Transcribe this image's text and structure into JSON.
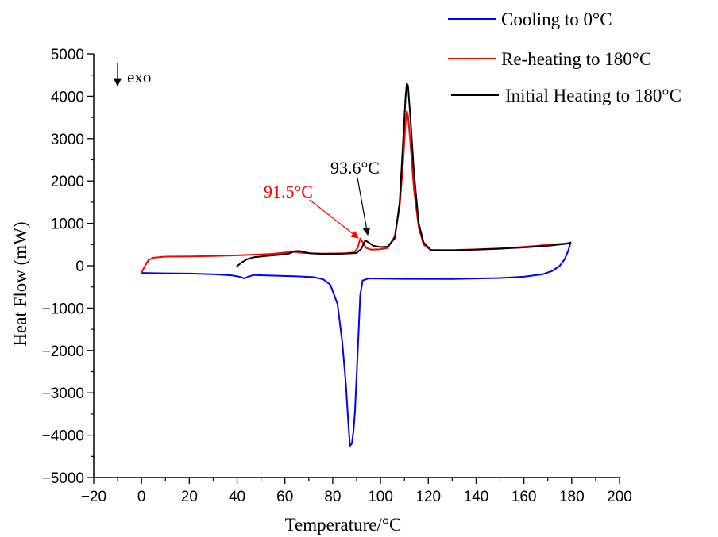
{
  "chart_data": {
    "type": "line",
    "title": "",
    "xlabel": "Temperature/°C",
    "ylabel": "Heat Flow (mW)",
    "xlim": [
      -20,
      200
    ],
    "ylim": [
      -5000,
      5000
    ],
    "x_ticks": [
      -20,
      0,
      20,
      40,
      60,
      80,
      100,
      120,
      140,
      160,
      180,
      200
    ],
    "y_ticks": [
      -5000,
      -4000,
      -3000,
      -2000,
      -1000,
      0,
      1000,
      2000,
      3000,
      4000,
      5000
    ],
    "x_tick_labels": [
      "−20",
      "0",
      "20",
      "40",
      "60",
      "80",
      "100",
      "120",
      "140",
      "160",
      "180",
      "200"
    ],
    "y_tick_labels": [
      "−5000",
      "−4000",
      "−3000",
      "−2000",
      "−1000",
      "0",
      "1000",
      "2000",
      "3000",
      "4000",
      "5000"
    ],
    "grid": false,
    "legend_position": "top-right",
    "exo_label": "exo",
    "series": [
      {
        "name": "Cooling to 0°C",
        "color": "#0000ff",
        "points": [
          [
            0,
            -170
          ],
          [
            10,
            -180
          ],
          [
            20,
            -185
          ],
          [
            30,
            -200
          ],
          [
            38,
            -230
          ],
          [
            41,
            -260
          ],
          [
            43,
            -300
          ],
          [
            45,
            -250
          ],
          [
            47,
            -220
          ],
          [
            55,
            -235
          ],
          [
            65,
            -250
          ],
          [
            72,
            -270
          ],
          [
            76,
            -320
          ],
          [
            79,
            -450
          ],
          [
            82,
            -900
          ],
          [
            84,
            -1800
          ],
          [
            85.5,
            -2800
          ],
          [
            86.5,
            -3700
          ],
          [
            87.2,
            -4250
          ],
          [
            88,
            -4200
          ],
          [
            88.7,
            -3900
          ],
          [
            89.3,
            -3450
          ],
          [
            90,
            -2600
          ],
          [
            90.8,
            -1600
          ],
          [
            91.5,
            -700
          ],
          [
            92.5,
            -350
          ],
          [
            95,
            -300
          ],
          [
            110,
            -310
          ],
          [
            130,
            -315
          ],
          [
            150,
            -290
          ],
          [
            160,
            -260
          ],
          [
            168,
            -200
          ],
          [
            172,
            -120
          ],
          [
            175,
            0
          ],
          [
            177,
            150
          ],
          [
            178.5,
            350
          ],
          [
            179.5,
            530
          ]
        ]
      },
      {
        "name": "Re-heating to 180°C",
        "color": "#ff0000",
        "points": [
          [
            0,
            -170
          ],
          [
            1,
            -50
          ],
          [
            2,
            50
          ],
          [
            3,
            140
          ],
          [
            5,
            190
          ],
          [
            10,
            215
          ],
          [
            20,
            220
          ],
          [
            30,
            230
          ],
          [
            40,
            245
          ],
          [
            50,
            265
          ],
          [
            55,
            280
          ],
          [
            60,
            310
          ],
          [
            63,
            330
          ],
          [
            65,
            320
          ],
          [
            68,
            300
          ],
          [
            75,
            285
          ],
          [
            85,
            295
          ],
          [
            89,
            310
          ],
          [
            90.5,
            430
          ],
          [
            91.5,
            640
          ],
          [
            92.5,
            560
          ],
          [
            94,
            420
          ],
          [
            96,
            380
          ],
          [
            100,
            390
          ],
          [
            103,
            420
          ],
          [
            106,
            700
          ],
          [
            108,
            1400
          ],
          [
            109.5,
            2500
          ],
          [
            110.5,
            3400
          ],
          [
            111,
            3650
          ],
          [
            111.5,
            3550
          ],
          [
            112.5,
            2900
          ],
          [
            114,
            1800
          ],
          [
            116,
            900
          ],
          [
            118,
            500
          ],
          [
            121,
            370
          ],
          [
            130,
            370
          ],
          [
            140,
            385
          ],
          [
            150,
            410
          ],
          [
            160,
            445
          ],
          [
            170,
            490
          ],
          [
            178,
            530
          ],
          [
            179.5,
            540
          ]
        ]
      },
      {
        "name": "Initial Heating to 180°C",
        "color": "#000000",
        "points": [
          [
            40,
            -10
          ],
          [
            42,
            80
          ],
          [
            44,
            150
          ],
          [
            47,
            200
          ],
          [
            52,
            230
          ],
          [
            58,
            260
          ],
          [
            62,
            290
          ],
          [
            64,
            340
          ],
          [
            66,
            350
          ],
          [
            68,
            320
          ],
          [
            71,
            290
          ],
          [
            78,
            275
          ],
          [
            85,
            285
          ],
          [
            90,
            300
          ],
          [
            92,
            400
          ],
          [
            93.6,
            600
          ],
          [
            95,
            550
          ],
          [
            97,
            470
          ],
          [
            100,
            440
          ],
          [
            103,
            450
          ],
          [
            106,
            650
          ],
          [
            108,
            1500
          ],
          [
            109.5,
            3000
          ],
          [
            110.5,
            4000
          ],
          [
            111,
            4300
          ],
          [
            111.5,
            4250
          ],
          [
            112.5,
            3500
          ],
          [
            114,
            2200
          ],
          [
            116,
            1000
          ],
          [
            118,
            550
          ],
          [
            121,
            370
          ],
          [
            130,
            360
          ],
          [
            140,
            380
          ],
          [
            150,
            400
          ],
          [
            160,
            430
          ],
          [
            170,
            470
          ],
          [
            178,
            520
          ],
          [
            179.5,
            550
          ]
        ]
      }
    ],
    "annotations": [
      {
        "text": "91.5°C",
        "color": "#ff0000",
        "points_to": [
          91.5,
          640
        ]
      },
      {
        "text": "93.6°C",
        "color": "#000000",
        "points_to": [
          93.6,
          600
        ]
      }
    ]
  }
}
